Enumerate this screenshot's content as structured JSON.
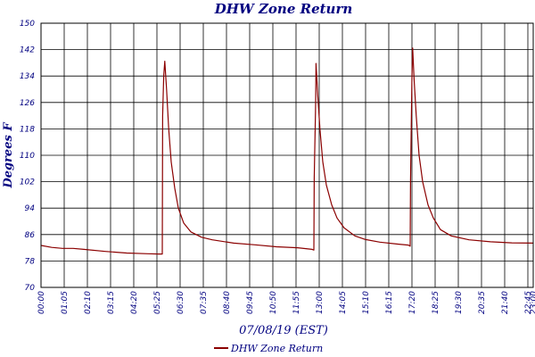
{
  "chart_data": {
    "type": "line",
    "title": "DHW Zone Return",
    "xlabel": "07/08/19 (EST)",
    "ylabel": "Degrees F",
    "ylim": [
      70,
      150
    ],
    "yticks": [
      70,
      78,
      86,
      94,
      102,
      110,
      118,
      126,
      134,
      142,
      150
    ],
    "xticks": [
      "00:00",
      "01:05",
      "02:10",
      "03:15",
      "04:20",
      "05:25",
      "06:30",
      "07:35",
      "08:40",
      "09:45",
      "10:50",
      "11:55",
      "13:00",
      "14:05",
      "15:10",
      "16:15",
      "17:20",
      "18:25",
      "19:30",
      "20:35",
      "21:40",
      "22:45",
      "23:00"
    ],
    "xlim": [
      0,
      1380
    ],
    "grid": true,
    "legend_position": "bottom",
    "series": [
      {
        "name": "DHW Zone Return",
        "color": "#8b0000",
        "points": [
          [
            0,
            82.7
          ],
          [
            30,
            82.1
          ],
          [
            60,
            81.8
          ],
          [
            90,
            81.8
          ],
          [
            120,
            81.5
          ],
          [
            180,
            80.9
          ],
          [
            240,
            80.4
          ],
          [
            300,
            80.2
          ],
          [
            330,
            80.1
          ],
          [
            340,
            80.1
          ],
          [
            341,
            122
          ],
          [
            344,
            134
          ],
          [
            347,
            138.5
          ],
          [
            352,
            130
          ],
          [
            358,
            118
          ],
          [
            365,
            108
          ],
          [
            375,
            100
          ],
          [
            385,
            94
          ],
          [
            400,
            89.5
          ],
          [
            420,
            86.8
          ],
          [
            450,
            85.2
          ],
          [
            480,
            84.4
          ],
          [
            540,
            83.4
          ],
          [
            600,
            82.9
          ],
          [
            660,
            82.3
          ],
          [
            720,
            82.0
          ],
          [
            760,
            81.5
          ],
          [
            765,
            81.3
          ],
          [
            766,
            103
          ],
          [
            770,
            126
          ],
          [
            771,
            137.8
          ],
          [
            776,
            128
          ],
          [
            782,
            118
          ],
          [
            790,
            108
          ],
          [
            800,
            101
          ],
          [
            815,
            95
          ],
          [
            830,
            91
          ],
          [
            850,
            88
          ],
          [
            880,
            85.6
          ],
          [
            910,
            84.5
          ],
          [
            950,
            83.7
          ],
          [
            1000,
            83.1
          ],
          [
            1030,
            82.8
          ],
          [
            1035,
            82.5
          ],
          [
            1036,
            102
          ],
          [
            1038,
            118
          ],
          [
            1040,
            134
          ],
          [
            1042,
            142.5
          ],
          [
            1046,
            133
          ],
          [
            1052,
            122
          ],
          [
            1060,
            110
          ],
          [
            1070,
            102
          ],
          [
            1085,
            95
          ],
          [
            1100,
            91
          ],
          [
            1120,
            87.5
          ],
          [
            1150,
            85.6
          ],
          [
            1200,
            84.4
          ],
          [
            1260,
            83.8
          ],
          [
            1320,
            83.5
          ],
          [
            1380,
            83.4
          ]
        ]
      }
    ]
  }
}
